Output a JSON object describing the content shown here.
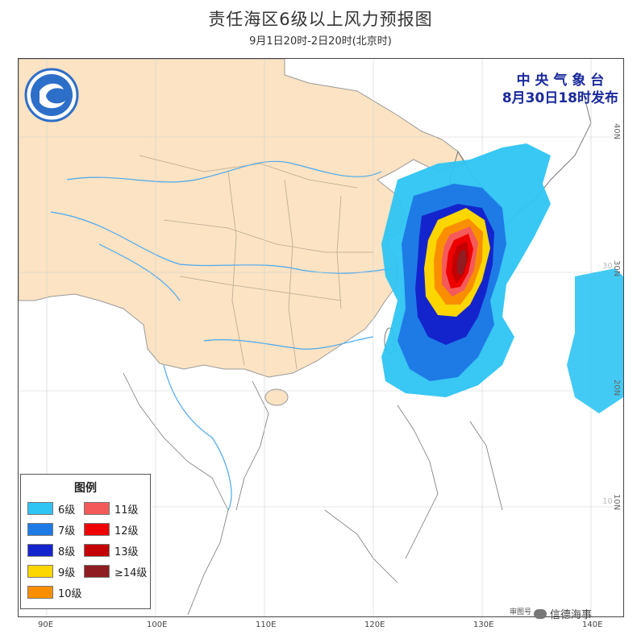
{
  "title": "责任海区6级以上风力预报图",
  "subtitle": "9月1日20时-2日20时(北京时)",
  "issuer": {
    "line1": "中 央 气 象 台",
    "line2": "8月30日18时发布"
  },
  "longitude_labels": [
    "90E",
    "100E",
    "110E",
    "120E",
    "130E",
    "140E"
  ],
  "latitude_labels": [
    "40N",
    "30N",
    "20N",
    "10N"
  ],
  "latitude_inner_labels": [
    "30",
    "10"
  ],
  "legend": {
    "title": "图例",
    "items": [
      {
        "label": "6级",
        "color": "#2ec4f3"
      },
      {
        "label": "7级",
        "color": "#1e7be6"
      },
      {
        "label": "8级",
        "color": "#1424cc"
      },
      {
        "label": "9级",
        "color": "#fcd600"
      },
      {
        "label": "10级",
        "color": "#f98f00"
      },
      {
        "label": "11级",
        "color": "#f55a5a"
      },
      {
        "label": "12级",
        "color": "#ee0000"
      },
      {
        "label": "13级",
        "color": "#c40000"
      },
      {
        "label": "≥14级",
        "color": "#8e1c21"
      }
    ]
  },
  "colors": {
    "land_china": "#fbe3c3",
    "border": "#9a9a9a",
    "river": "#4aa8ef",
    "issuer": "#1a2a9c"
  },
  "icons": {
    "logo": "cma-logo-icon",
    "wechat": "wechat-icon"
  },
  "watermark": "审图号",
  "account": "信德海事"
}
